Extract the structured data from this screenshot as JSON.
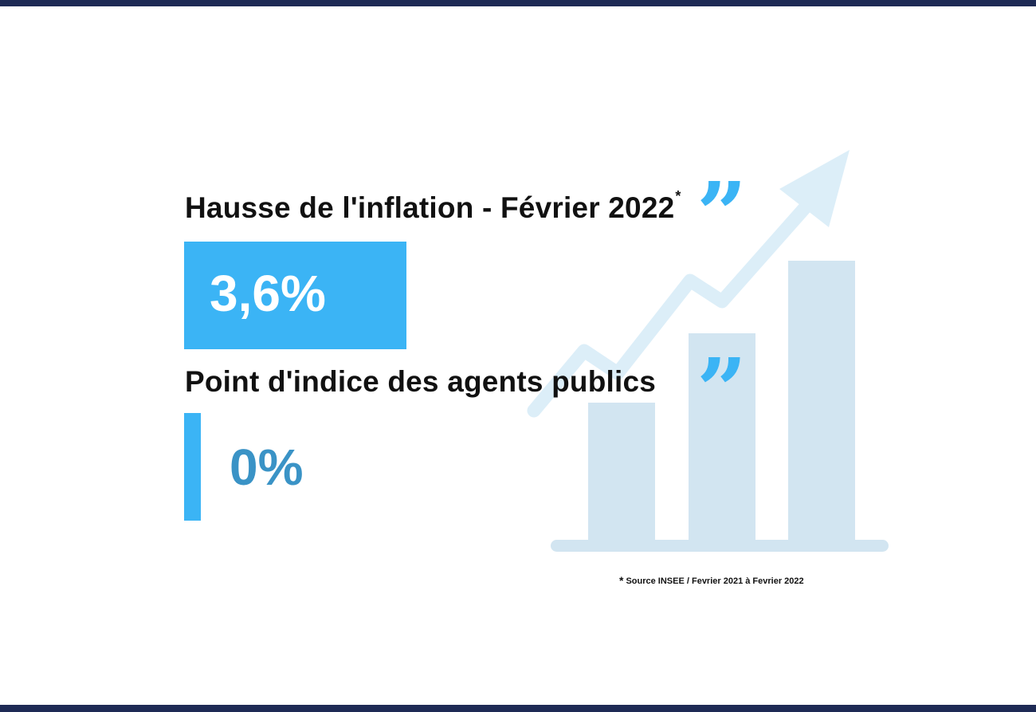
{
  "colors": {
    "navy": "#1e2a55",
    "accent": "#3bb4f5",
    "value2": "#3a93c6",
    "decor_bars": "#d2e5f1",
    "decor_arrow": "#dceef8",
    "text": "#111111"
  },
  "icons": [
    "quote-icon",
    "trend-arrow-icon",
    "bar-chart-icon"
  ],
  "inflation": {
    "label": "Hausse de l'inflation - Février 2022",
    "footnote_marker": "*",
    "value": "3,6%"
  },
  "point_indice": {
    "label": "Point d'indice des agents publics",
    "value": "0%"
  },
  "quote_glyph": "”",
  "source": {
    "marker": "*",
    "text": "Source INSEE / Fevrier 2021 à Fevrier 2022"
  },
  "chart_data": {
    "type": "bar",
    "categories": [
      "Hausse de l'inflation - Février 2022",
      "Point d'indice des agents publics"
    ],
    "values": [
      3.6,
      0
    ],
    "value_labels": [
      "3,6%",
      "0%"
    ],
    "unit": "%",
    "ylim": [
      0,
      3.6
    ],
    "grid": false,
    "orientation": "horizontal",
    "decorative_bars_relative": [
      0.49,
      0.74,
      1.0
    ]
  }
}
